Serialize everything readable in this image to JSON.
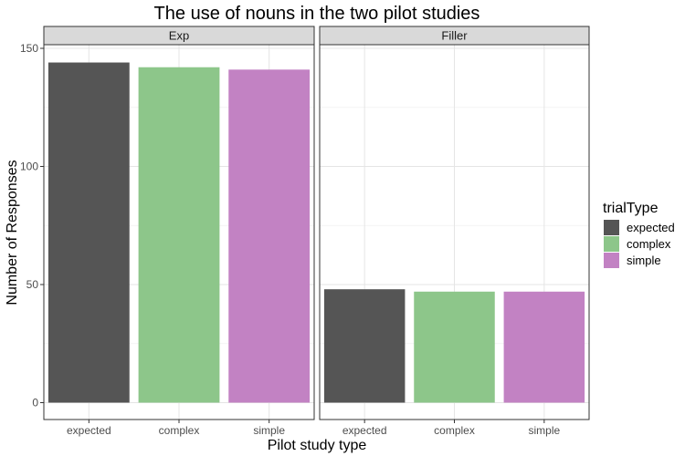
{
  "chart_data": {
    "type": "bar",
    "title": "The use of nouns in the two pilot studies",
    "xlabel": "Pilot study type",
    "ylabel": "Number of Responses",
    "ylim": [
      0,
      150
    ],
    "yticks": [
      0,
      50,
      100,
      150
    ],
    "grid": true,
    "facet_by": "panel",
    "categories": [
      "expected",
      "complex",
      "simple"
    ],
    "panels": [
      {
        "label": "Exp",
        "values": [
          144,
          142,
          141
        ]
      },
      {
        "label": "Filler",
        "values": [
          48,
          47,
          47
        ]
      }
    ],
    "legend": {
      "title": "trialType",
      "placement": "right",
      "entries": [
        {
          "label": "expected",
          "color": "#555555"
        },
        {
          "label": "complex",
          "color": "#8dc68a"
        },
        {
          "label": "simple",
          "color": "#c282c3"
        }
      ]
    }
  }
}
